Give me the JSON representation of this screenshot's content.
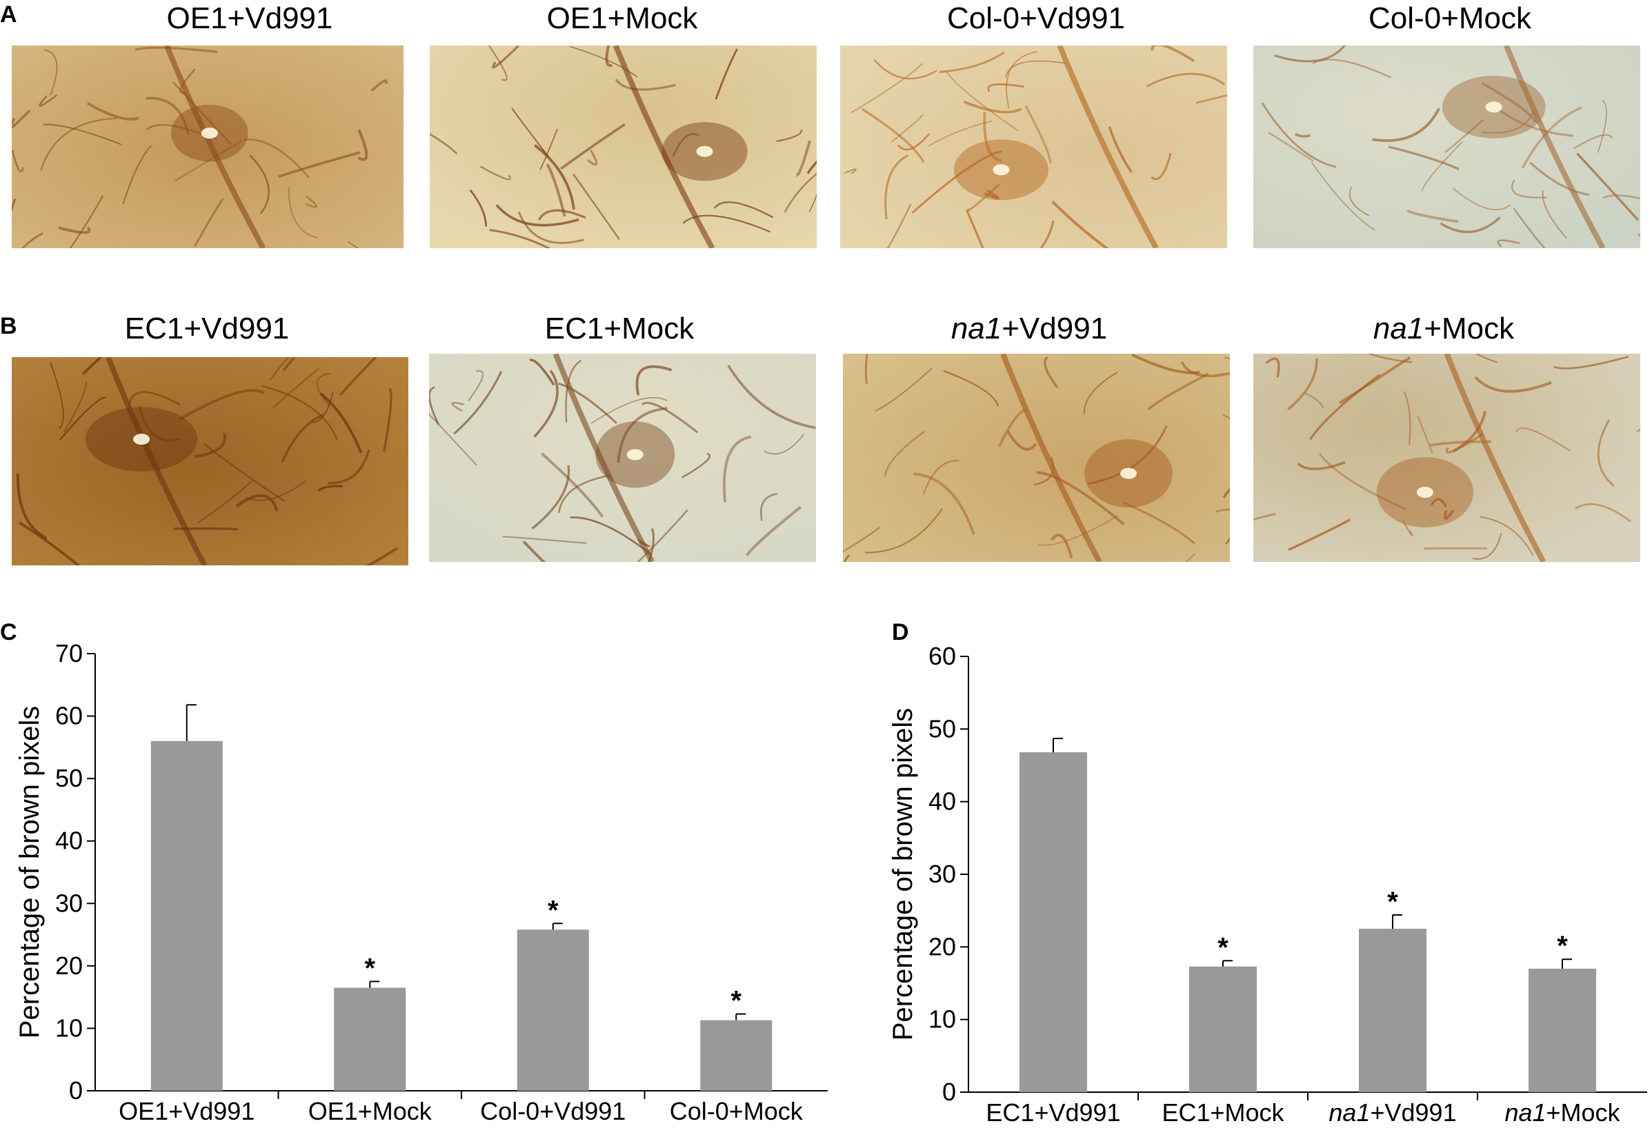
{
  "panels": {
    "A": {
      "letter": "A",
      "images": [
        {
          "label": "OE1+Vd991",
          "stain": "#8a4a1a",
          "base": "#d7b884",
          "alt": "#c59a5a"
        },
        {
          "label": "OE1+Mock",
          "stain": "#7a3a10",
          "base": "#e8d8b0",
          "alt": "#d8c28e"
        },
        {
          "label": "Col-0+Vd991",
          "stain": "#b3651d",
          "base": "#e6d5ad",
          "alt": "#dcc394"
        },
        {
          "label": "Col-0+Mock",
          "stain": "#a06a3a",
          "base": "#cdd3c4",
          "alt": "#dcdcc8"
        }
      ]
    },
    "B": {
      "letter": "B",
      "images": [
        {
          "label_main": "EC1+Vd991",
          "label_italic": "",
          "stain": "#6b3510",
          "base": "#b7843f",
          "alt": "#9a6425"
        },
        {
          "label_main": "EC1+Mock",
          "label_italic": "",
          "stain": "#7a4a20",
          "base": "#d5d8c6",
          "alt": "#e1dcc4"
        },
        {
          "label_italic": "na1",
          "label_main": "+Vd991",
          "stain": "#a4581a",
          "base": "#d7c08c",
          "alt": "#cba66c"
        },
        {
          "label_italic": "na1",
          "label_main": "+Mock",
          "stain": "#a85f22",
          "base": "#d8d2bc",
          "alt": "#c9b78e"
        }
      ]
    }
  },
  "chart_data": [
    {
      "panel": "C",
      "type": "bar",
      "categories": [
        {
          "main": "OE1+Vd991",
          "italic": ""
        },
        {
          "main": "OE1+Mock",
          "italic": ""
        },
        {
          "main": "Col-0+Vd991",
          "italic": ""
        },
        {
          "main": "Col-0+Mock",
          "italic": ""
        }
      ],
      "values": [
        56.0,
        16.5,
        25.8,
        11.3
      ],
      "errors": [
        5.8,
        1.0,
        1.0,
        1.0
      ],
      "significance": [
        "",
        "*",
        "*",
        "*"
      ],
      "ylabel": "Percentage of brown pixels",
      "ylim": [
        0,
        70
      ],
      "yticks": [
        "0",
        "10",
        "20",
        "30",
        "40",
        "50",
        "60",
        "70"
      ],
      "bar_color": "#999999"
    },
    {
      "panel": "D",
      "type": "bar",
      "categories": [
        {
          "main": "EC1+Vd991",
          "italic": ""
        },
        {
          "main": "EC1+Mock",
          "italic": ""
        },
        {
          "main": "+Vd991",
          "italic": "na1"
        },
        {
          "main": "+Mock",
          "italic": "na1"
        }
      ],
      "values": [
        46.8,
        17.3,
        22.5,
        17.0
      ],
      "errors": [
        1.9,
        0.8,
        1.9,
        1.3
      ],
      "significance": [
        "",
        "*",
        "*",
        "*"
      ],
      "ylabel": "Percentage of brown pixels",
      "ylim": [
        0,
        60
      ],
      "yticks": [
        "0",
        "10",
        "20",
        "30",
        "40",
        "50",
        "60"
      ],
      "bar_color": "#999999"
    }
  ]
}
